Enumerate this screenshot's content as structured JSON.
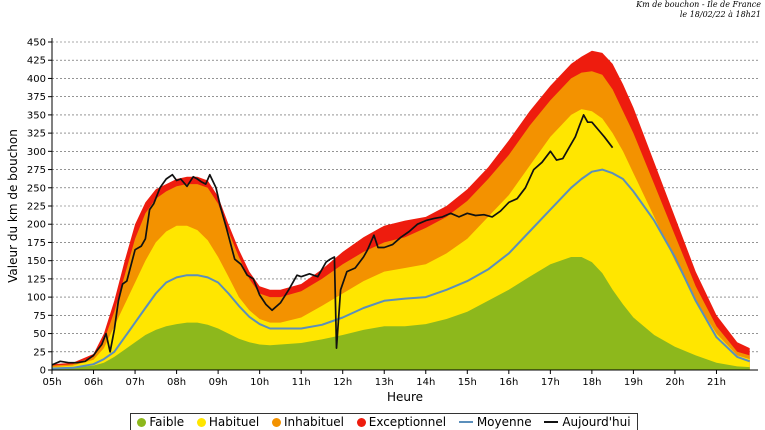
{
  "header": {
    "line1": "Km de bouchon - Ile de France",
    "line2": "le 18/02/22 à 18h21"
  },
  "chart_data": {
    "type": "area",
    "title": "",
    "xlabel": "Heure",
    "ylabel": "Valeur du  km de bouchon",
    "xlim": [
      5,
      22
    ],
    "ylim": [
      0,
      450
    ],
    "y_ticks": [
      0,
      25,
      50,
      75,
      100,
      125,
      150,
      175,
      200,
      225,
      250,
      275,
      300,
      325,
      350,
      375,
      400,
      425,
      450
    ],
    "x_ticks": [
      "05h",
      "06h",
      "07h",
      "08h",
      "09h",
      "10h",
      "11h",
      "12h",
      "13h",
      "14h",
      "15h",
      "16h",
      "17h",
      "18h",
      "19h",
      "20h",
      "21h"
    ],
    "grid": "horizontal-dashed",
    "legend_position": "bottom",
    "x": [
      5.0,
      5.5,
      6.0,
      6.25,
      6.5,
      6.75,
      7.0,
      7.25,
      7.5,
      7.75,
      8.0,
      8.25,
      8.5,
      8.75,
      9.0,
      9.25,
      9.5,
      9.75,
      10.0,
      10.25,
      10.5,
      11.0,
      11.5,
      12.0,
      12.5,
      13.0,
      13.5,
      14.0,
      14.5,
      15.0,
      15.5,
      16.0,
      16.5,
      17.0,
      17.5,
      17.75,
      18.0,
      18.25,
      18.5,
      18.75,
      19.0,
      19.5,
      20.0,
      20.5,
      21.0,
      21.5,
      21.8
    ],
    "series": [
      {
        "name": "Faible",
        "color": "#8db81c",
        "values": [
          2,
          3,
          6,
          10,
          18,
          28,
          38,
          48,
          55,
          60,
          63,
          65,
          65,
          62,
          57,
          50,
          43,
          38,
          35,
          34,
          35,
          37,
          42,
          48,
          55,
          60,
          60,
          63,
          70,
          80,
          95,
          110,
          128,
          145,
          155,
          155,
          148,
          133,
          110,
          90,
          72,
          48,
          32,
          20,
          10,
          5,
          4
        ]
      },
      {
        "name": "Habituel",
        "color": "#ffe600",
        "values": [
          4,
          6,
          14,
          30,
          60,
          90,
          120,
          150,
          175,
          190,
          198,
          198,
          192,
          178,
          155,
          128,
          100,
          82,
          70,
          65,
          65,
          72,
          88,
          105,
          122,
          135,
          140,
          145,
          160,
          180,
          210,
          240,
          280,
          320,
          350,
          358,
          355,
          345,
          325,
          300,
          270,
          210,
          150,
          95,
          50,
          20,
          15
        ]
      },
      {
        "name": "Inhabituel",
        "color": "#f39200",
        "values": [
          6,
          8,
          18,
          40,
          80,
          130,
          180,
          215,
          235,
          245,
          252,
          255,
          255,
          250,
          228,
          190,
          155,
          125,
          105,
          100,
          100,
          108,
          125,
          145,
          162,
          175,
          182,
          195,
          210,
          232,
          262,
          295,
          335,
          370,
          400,
          408,
          410,
          405,
          385,
          355,
          325,
          255,
          185,
          115,
          60,
          25,
          20
        ]
      },
      {
        "name": "Exceptionnel",
        "color": "#ee1c0e",
        "values": [
          8,
          10,
          22,
          50,
          95,
          150,
          200,
          230,
          248,
          255,
          262,
          265,
          265,
          260,
          238,
          200,
          165,
          135,
          115,
          110,
          110,
          118,
          138,
          162,
          182,
          198,
          205,
          210,
          225,
          248,
          278,
          315,
          355,
          390,
          420,
          430,
          438,
          435,
          420,
          392,
          360,
          285,
          210,
          135,
          75,
          38,
          30
        ]
      },
      {
        "name": "Moyenne",
        "color": "#5b8fbb",
        "values": [
          2,
          3,
          8,
          15,
          25,
          45,
          65,
          85,
          105,
          120,
          127,
          130,
          130,
          127,
          120,
          105,
          88,
          73,
          63,
          57,
          57,
          57,
          62,
          72,
          85,
          95,
          98,
          100,
          110,
          122,
          138,
          160,
          190,
          220,
          250,
          262,
          272,
          275,
          270,
          262,
          245,
          205,
          155,
          95,
          45,
          18,
          12
        ]
      },
      {
        "name": "Aujourd'hui",
        "color": "#111111",
        "x": [
          5.0,
          5.2,
          5.4,
          5.6,
          5.8,
          6.0,
          6.1,
          6.2,
          6.3,
          6.4,
          6.5,
          6.6,
          6.7,
          6.8,
          7.0,
          7.15,
          7.25,
          7.35,
          7.45,
          7.6,
          7.75,
          7.9,
          8.0,
          8.1,
          8.25,
          8.4,
          8.5,
          8.6,
          8.7,
          8.8,
          8.95,
          9.05,
          9.2,
          9.4,
          9.55,
          9.7,
          9.85,
          10.0,
          10.15,
          10.3,
          10.5,
          10.7,
          10.9,
          11.0,
          11.2,
          11.4,
          11.6,
          11.7,
          11.8,
          11.85,
          11.95,
          12.1,
          12.3,
          12.5,
          12.6,
          12.75,
          12.85,
          13.0,
          13.2,
          13.4,
          13.6,
          13.8,
          14.0,
          14.2,
          14.4,
          14.6,
          14.8,
          15.0,
          15.2,
          15.4,
          15.6,
          15.8,
          16.0,
          16.2,
          16.4,
          16.6,
          16.8,
          17.0,
          17.15,
          17.3,
          17.45,
          17.6,
          17.7,
          17.8,
          17.9,
          18.0,
          18.15,
          18.3,
          18.5
        ],
        "values": [
          7,
          12,
          10,
          10,
          12,
          20,
          28,
          35,
          50,
          25,
          55,
          95,
          118,
          122,
          165,
          170,
          180,
          220,
          228,
          250,
          262,
          268,
          260,
          262,
          252,
          265,
          262,
          258,
          255,
          268,
          250,
          225,
          195,
          152,
          145,
          130,
          125,
          103,
          90,
          82,
          92,
          110,
          130,
          128,
          132,
          128,
          148,
          152,
          155,
          30,
          110,
          135,
          140,
          155,
          165,
          185,
          168,
          168,
          172,
          182,
          190,
          200,
          205,
          208,
          210,
          215,
          210,
          215,
          212,
          213,
          210,
          218,
          230,
          235,
          250,
          275,
          285,
          300,
          288,
          290,
          305,
          320,
          335,
          350,
          340,
          340,
          330,
          320,
          305
        ]
      }
    ]
  },
  "legend": [
    {
      "label": "Faible",
      "kind": "dot",
      "color": "#8db81c"
    },
    {
      "label": "Habituel",
      "kind": "dot",
      "color": "#ffe600"
    },
    {
      "label": "Inhabituel",
      "kind": "dot",
      "color": "#f39200"
    },
    {
      "label": "Exceptionnel",
      "kind": "dot",
      "color": "#ee1c0e"
    },
    {
      "label": "Moyenne",
      "kind": "line",
      "color": "#5b8fbb"
    },
    {
      "label": "Aujourd'hui",
      "kind": "line",
      "color": "#111111"
    }
  ]
}
